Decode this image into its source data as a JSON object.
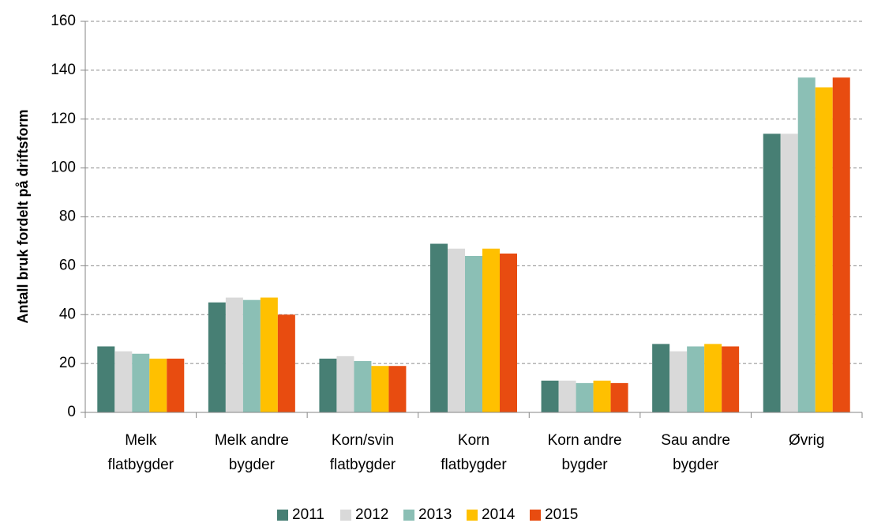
{
  "chart_data": {
    "type": "bar",
    "y_label": "Antall bruk fordelt på driftsform",
    "categories": [
      "Melk flatbygder",
      "Melk andre bygder",
      "Korn/svin flatbygder",
      "Korn flatbygder",
      "Korn andre bygder",
      "Sau andre bygder",
      "Øvrig"
    ],
    "series": [
      {
        "name": "2011",
        "color": "#477f74",
        "values": [
          27,
          45,
          22,
          69,
          13,
          28,
          114
        ]
      },
      {
        "name": "2012",
        "color": "#d9d9d9",
        "values": [
          25,
          47,
          23,
          67,
          13,
          25,
          114
        ]
      },
      {
        "name": "2013",
        "color": "#8bbfb5",
        "values": [
          24,
          46,
          21,
          64,
          12,
          27,
          137
        ]
      },
      {
        "name": "2014",
        "color": "#ffc000",
        "values": [
          22,
          47,
          19,
          67,
          13,
          28,
          133
        ]
      },
      {
        "name": "2015",
        "color": "#e84c10",
        "values": [
          22,
          40,
          19,
          65,
          12,
          27,
          137
        ]
      }
    ],
    "ylim": [
      0,
      160
    ],
    "yticks": [
      0,
      20,
      40,
      60,
      80,
      100,
      120,
      140,
      160
    ],
    "grid": true,
    "legend": "bottom"
  }
}
